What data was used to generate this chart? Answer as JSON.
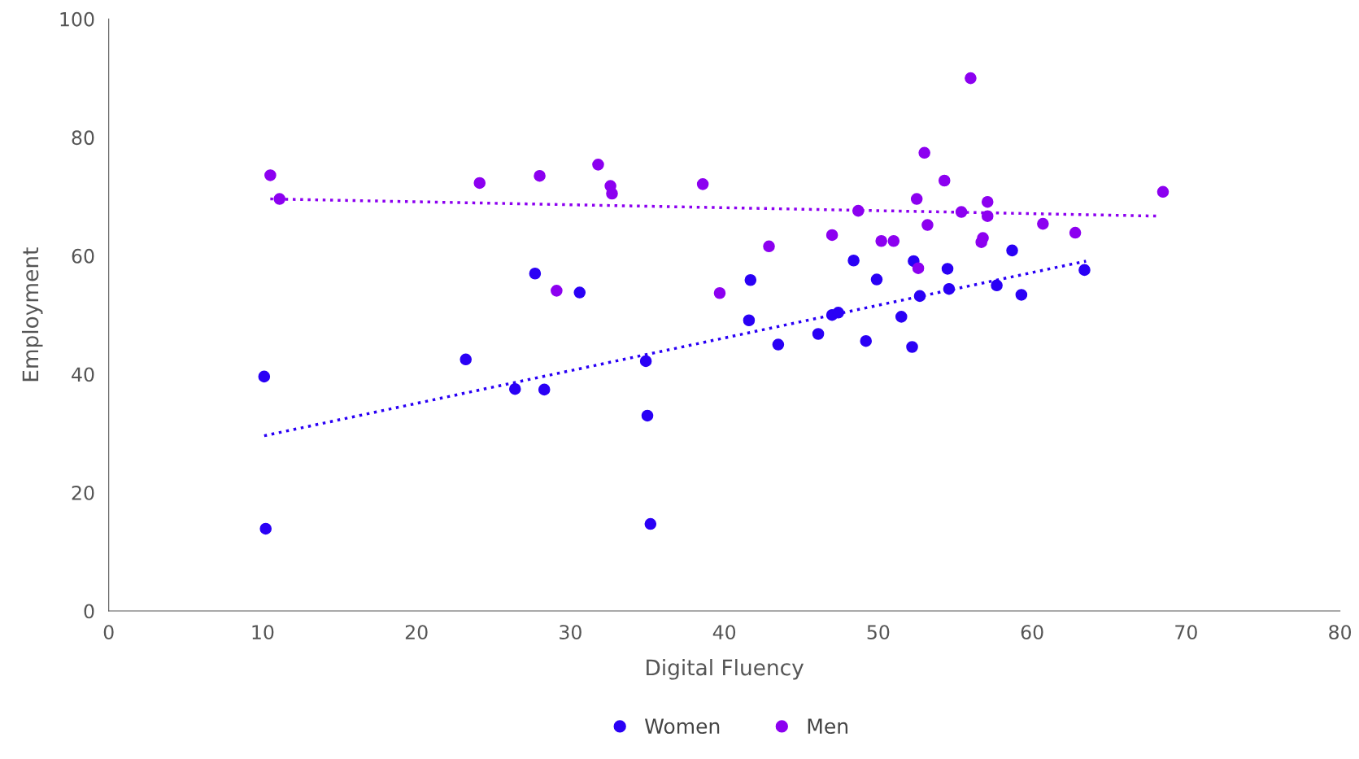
{
  "chart_data": {
    "type": "scatter",
    "xlabel": "Digital Fluency",
    "ylabel": "Employment",
    "xlim": [
      0,
      80
    ],
    "xticks": [
      0,
      10,
      20,
      30,
      40,
      50,
      60,
      70,
      80
    ],
    "ylim": [
      0,
      100
    ],
    "yticks": [
      0,
      20,
      40,
      60,
      80,
      100
    ],
    "grid": false,
    "legend": "bottom",
    "series": [
      {
        "name": "Women",
        "color": "#2a00f5",
        "marker": "circle",
        "x": [
          10.1,
          10.2,
          23.2,
          26.4,
          27.7,
          28.3,
          30.6,
          34.9,
          35.0,
          35.2,
          41.6,
          41.7,
          43.5,
          46.1,
          47.0,
          47.4,
          48.4,
          49.2,
          49.9,
          51.5,
          52.2,
          52.3,
          52.7,
          54.5,
          54.6,
          57.7,
          58.7,
          59.3,
          63.4
        ],
        "values": [
          39.6,
          13.9,
          42.5,
          37.5,
          57.0,
          37.4,
          53.8,
          42.2,
          33.0,
          14.7,
          49.1,
          55.9,
          45.0,
          46.8,
          50.0,
          50.4,
          59.2,
          45.6,
          56.0,
          49.7,
          44.6,
          59.1,
          53.2,
          57.8,
          54.4,
          55.0,
          60.9,
          53.4,
          57.6
        ]
      },
      {
        "name": "Men",
        "color": "#8c00f0",
        "marker": "circle",
        "x": [
          10.5,
          11.1,
          24.1,
          28.0,
          29.1,
          31.8,
          32.6,
          32.7,
          38.6,
          39.7,
          42.9,
          47.0,
          48.7,
          50.2,
          51.0,
          52.5,
          52.6,
          53.0,
          53.2,
          54.3,
          55.4,
          56.0,
          56.7,
          56.8,
          57.1,
          57.1,
          60.7,
          62.8,
          68.5
        ],
        "values": [
          73.6,
          69.6,
          72.3,
          73.5,
          54.1,
          75.4,
          71.8,
          70.5,
          72.1,
          53.7,
          61.6,
          63.5,
          67.6,
          62.5,
          62.5,
          69.6,
          57.9,
          77.4,
          65.2,
          72.7,
          67.4,
          90.0,
          62.3,
          63.0,
          66.7,
          69.1,
          65.4,
          63.9,
          70.8
        ]
      },
      {
        "type": "line",
        "color": "#2a00f5",
        "marker": "none",
        "line_style": "dotted",
        "x": [
          10.1,
          63.5
        ],
        "values": [
          29.6,
          59.1
        ]
      },
      {
        "type": "line",
        "color": "#8c00f0",
        "marker": "none",
        "line_style": "dotted",
        "x": [
          10.5,
          68.3
        ],
        "values": [
          69.6,
          66.7
        ]
      }
    ]
  }
}
